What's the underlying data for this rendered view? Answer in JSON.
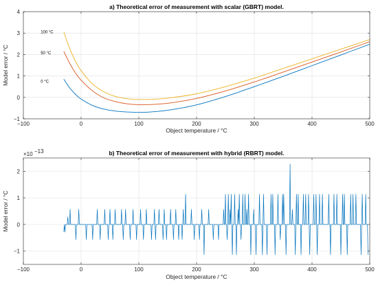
{
  "chart_data": [
    {
      "type": "line",
      "title": "a) Theoretical error of measurement with scalar (GBRT) model.",
      "xlabel": "Object temperature / °C",
      "ylabel": "Model error / °C",
      "xlim": [
        -100,
        500
      ],
      "ylim": [
        -1,
        4
      ],
      "xticks": [
        -100,
        0,
        100,
        200,
        300,
        400,
        500
      ],
      "yticks": [
        -1,
        0,
        1,
        2,
        3,
        4
      ],
      "xtick_labels": [
        "−100",
        "0",
        "100",
        "200",
        "300",
        "400",
        "500"
      ],
      "ytick_labels": [
        "−1",
        "0",
        "1",
        "2",
        "3",
        "4"
      ],
      "grid": true,
      "series": [
        {
          "name": "100 °C",
          "color": "#EDB120",
          "x": [
            -30,
            -20,
            -10,
            0,
            20,
            40,
            60,
            80,
            100,
            130,
            160,
            200,
            250,
            300,
            350,
            400,
            450,
            500
          ],
          "y": [
            3.05,
            2.3,
            1.7,
            1.25,
            0.62,
            0.25,
            0.04,
            -0.06,
            -0.1,
            -0.08,
            0.0,
            0.17,
            0.5,
            0.9,
            1.35,
            1.8,
            2.25,
            2.7
          ]
        },
        {
          "name": "50 °C",
          "color": "#D95319",
          "x": [
            -30,
            -20,
            -10,
            0,
            20,
            40,
            60,
            80,
            100,
            130,
            160,
            200,
            250,
            300,
            350,
            400,
            450,
            500
          ],
          "y": [
            2.15,
            1.6,
            1.15,
            0.8,
            0.3,
            -0.03,
            -0.2,
            -0.3,
            -0.34,
            -0.32,
            -0.24,
            -0.05,
            0.3,
            0.72,
            1.18,
            1.65,
            2.12,
            2.6
          ]
        },
        {
          "name": "0 °C",
          "color": "#0072BD",
          "x": [
            -30,
            -20,
            -10,
            0,
            20,
            40,
            60,
            80,
            100,
            130,
            160,
            200,
            250,
            300,
            350,
            400,
            450,
            500
          ],
          "y": [
            0.85,
            0.45,
            0.15,
            -0.08,
            -0.38,
            -0.55,
            -0.64,
            -0.68,
            -0.7,
            -0.66,
            -0.56,
            -0.35,
            0.04,
            0.5,
            0.98,
            1.48,
            1.98,
            2.48
          ]
        }
      ],
      "annotations": [
        {
          "text": "100 °C",
          "x": -70,
          "y": 3.05
        },
        {
          "text": "50 °C",
          "x": -70,
          "y": 2.08
        },
        {
          "text": "0 °C",
          "x": -70,
          "y": 0.75
        }
      ]
    },
    {
      "type": "line",
      "title": "b) Theoretical error of measurement with hybrid (RBRT) model.",
      "xlabel": "Object temperature / °C",
      "ylabel": "Model error / °C",
      "exponent_label": "×10",
      "exponent_power": "−13",
      "xlim": [
        -100,
        500
      ],
      "ylim": [
        -1.5,
        2.5
      ],
      "xticks": [
        -100,
        0,
        100,
        200,
        300,
        400,
        500
      ],
      "yticks": [
        -1,
        0,
        1,
        2
      ],
      "xtick_labels": [
        "−100",
        "0",
        "100",
        "200",
        "300",
        "400",
        "500"
      ],
      "ytick_labels": [
        "−1",
        "0",
        "1",
        "2"
      ],
      "grid": true,
      "levels": [
        -1.137,
        -0.568,
        0,
        0.284,
        0.568,
        1.137,
        2.274
      ],
      "series": [
        {
          "name": "",
          "color": "#0072BD",
          "x_start": -30,
          "x_step": 1,
          "y": [
            -0.284,
            0,
            -0.284,
            0,
            0,
            0,
            0,
            0.284,
            0,
            0,
            0,
            0.568,
            0,
            0,
            0,
            0,
            0,
            0,
            0,
            0,
            0,
            -0.568,
            0,
            0,
            0,
            0,
            0.568,
            0,
            0,
            0,
            0,
            0,
            0,
            0,
            0,
            0,
            0,
            0,
            0,
            -0.568,
            0,
            0,
            0,
            0,
            0,
            0,
            0,
            0,
            0,
            0,
            -0.568,
            0,
            0,
            0,
            0,
            0,
            0,
            0,
            0.568,
            0,
            0,
            0,
            0,
            -0.568,
            0,
            0,
            0,
            0,
            0,
            0,
            0,
            0.568,
            0,
            0,
            0,
            0,
            0,
            -0.568,
            0,
            0,
            0.568,
            0,
            0,
            0,
            0,
            -0.568,
            0,
            0,
            0,
            0.568,
            0,
            0,
            0,
            0,
            0,
            0,
            0,
            0,
            0,
            0,
            0.568,
            0,
            0,
            -0.568,
            0,
            0,
            0,
            0.568,
            0,
            0,
            0,
            0,
            0,
            0,
            0,
            -0.568,
            0,
            0,
            0,
            0,
            0.568,
            0,
            0,
            0,
            0,
            0,
            -0.568,
            0,
            0,
            0,
            0,
            0,
            0,
            0.568,
            0,
            0,
            0,
            0,
            -0.568,
            0,
            0,
            0,
            0,
            0.568,
            0,
            0,
            0,
            0,
            0,
            0,
            0,
            0,
            -0.568,
            0,
            0,
            0,
            0,
            0.568,
            0,
            -0.568,
            0,
            0,
            0,
            0,
            0,
            0.568,
            0,
            0,
            0,
            0,
            0,
            0,
            -0.568,
            0,
            0.568,
            0,
            0,
            0,
            -0.568,
            0,
            0,
            0,
            0,
            0,
            0,
            0.568,
            0,
            0,
            0,
            0,
            -0.568,
            0,
            0,
            0,
            0.568,
            0,
            0,
            0,
            0,
            -0.568,
            0,
            0,
            0,
            0,
            0,
            -0.568,
            0,
            0.568,
            0,
            0,
            0,
            1.137,
            0,
            0,
            0,
            0,
            0,
            0,
            0,
            0,
            0,
            0.568,
            0,
            0,
            0,
            0,
            -0.568,
            0,
            0,
            0,
            0,
            0,
            0,
            0,
            0,
            -0.568,
            0,
            0,
            0,
            0.568,
            0,
            0,
            0,
            -1.137,
            0,
            0,
            0,
            0,
            0,
            0,
            0,
            0.568,
            0,
            0,
            0,
            0,
            0,
            0,
            0,
            -0.568,
            0,
            0,
            0,
            0,
            0,
            0,
            0,
            0,
            -0.568,
            0,
            0,
            0,
            0,
            0,
            0,
            0,
            0,
            0.568,
            0,
            0,
            1.137,
            0,
            0,
            -0.568,
            0,
            1.137,
            0,
            0,
            0.568,
            0,
            1.137,
            0,
            -1.137,
            0,
            0,
            0,
            1.137,
            0,
            0,
            -1.137,
            0,
            0,
            0.568,
            0,
            1.137,
            0,
            0,
            -0.568,
            0,
            0,
            1.137,
            0,
            0,
            0,
            1.137,
            0,
            0,
            0.568,
            0,
            0,
            1.137,
            0,
            0,
            0,
            -1.137,
            0,
            0,
            0,
            0,
            0.568,
            0,
            0,
            0,
            -1.137,
            0,
            0,
            0,
            0,
            0,
            1.137,
            0,
            0,
            0,
            0,
            -1.137,
            0,
            1.137,
            0,
            0,
            0,
            0,
            0,
            -1.137,
            0,
            0,
            0,
            0,
            0,
            0,
            1.137,
            0,
            0,
            1.137,
            0,
            0,
            0,
            -1.137,
            0,
            0,
            0,
            0,
            1.137,
            0,
            0,
            0,
            -0.568,
            0,
            0,
            0,
            1.137,
            0,
            1.137,
            0,
            0,
            0,
            -1.137,
            0,
            0,
            0,
            0,
            0,
            0,
            2.274,
            0,
            0,
            0,
            0.568,
            0,
            0,
            0,
            0,
            -1.137,
            0,
            1.137,
            0,
            0,
            1.137,
            0,
            0,
            0,
            0,
            -1.137,
            0,
            0,
            0,
            1.137,
            0,
            0,
            0,
            1.137,
            0,
            0,
            0,
            0,
            1.137,
            0,
            -1.137,
            0,
            0,
            0,
            0,
            0,
            0,
            1.137,
            0,
            0,
            0,
            1.137,
            0,
            -1.137,
            0,
            0,
            0,
            1.137,
            0,
            0,
            0,
            0,
            1.137,
            0,
            0,
            0,
            0,
            0,
            0,
            0,
            0,
            0,
            0,
            1.137,
            0,
            0,
            -1.137,
            0,
            0,
            0,
            0,
            0,
            1.137,
            0,
            0,
            0,
            0,
            1.137,
            0,
            0,
            0,
            0,
            0,
            0,
            -1.137,
            0,
            0,
            1.137,
            0,
            0,
            1.137,
            0,
            0,
            0,
            0,
            -1.137,
            0,
            0,
            0,
            0,
            0,
            1.137,
            0,
            0,
            0,
            1.137,
            0,
            0,
            0,
            0,
            1.137,
            0,
            0,
            0,
            0,
            0,
            0,
            0,
            0,
            -1.137,
            0,
            1.137,
            0,
            0,
            0,
            0,
            0,
            1.137,
            0,
            0,
            0,
            -1.137
          ]
        }
      ]
    }
  ]
}
